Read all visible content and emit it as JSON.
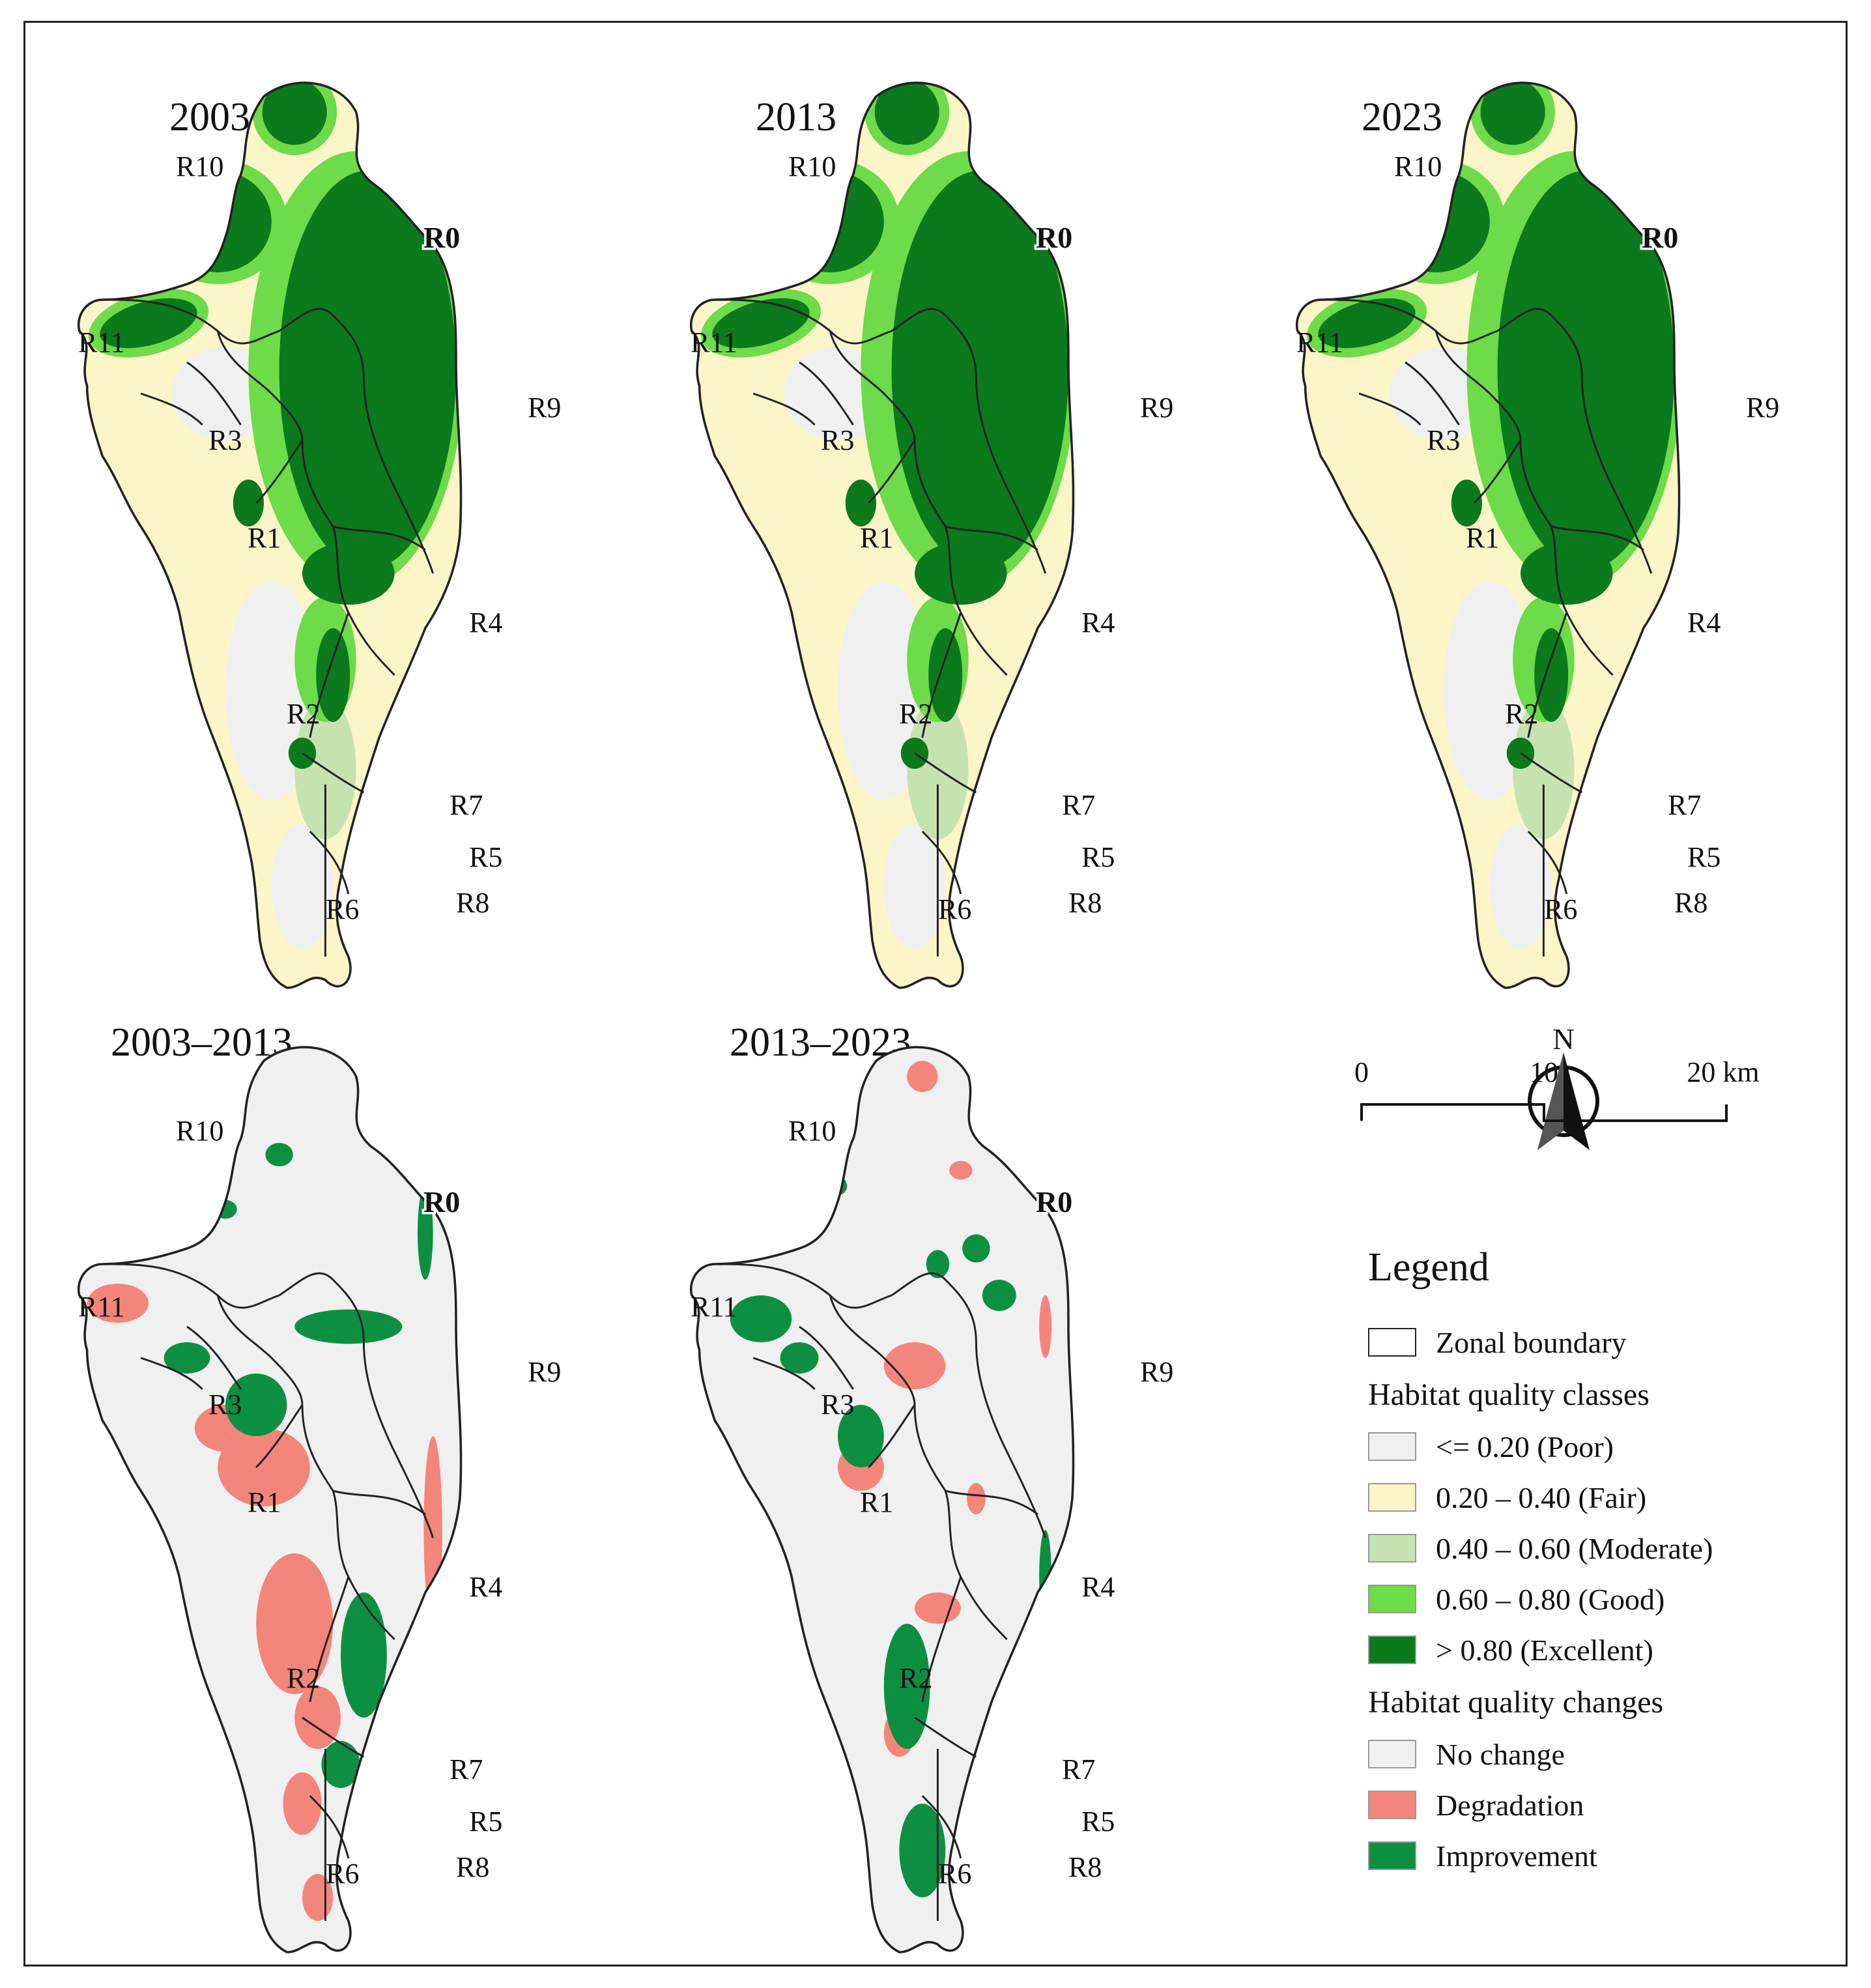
{
  "panels": [
    {
      "id": "p2003",
      "title": "2003",
      "kind": "quality"
    },
    {
      "id": "p2013",
      "title": "2013",
      "kind": "quality"
    },
    {
      "id": "p2023",
      "title": "2023",
      "kind": "quality"
    },
    {
      "id": "p0313",
      "title": "2003–2013",
      "kind": "change"
    },
    {
      "id": "p1323",
      "title": "2013–2023",
      "kind": "change"
    }
  ],
  "regions": [
    "R0",
    "R1",
    "R2",
    "R3",
    "R4",
    "R5",
    "R6",
    "R7",
    "R8",
    "R9",
    "R10",
    "R11"
  ],
  "north_arrow": {
    "label": "N"
  },
  "scale_bar": {
    "ticks": [
      "0",
      "10",
      "20 km"
    ]
  },
  "legend": {
    "title": "Legend",
    "boundary_label": "Zonal boundary",
    "quality_heading": "Habitat quality classes",
    "quality_classes": [
      {
        "label": "<= 0.20 (Poor)",
        "color": "#f0f0f0"
      },
      {
        "label": "0.20 – 0.40 (Fair)",
        "color": "#fbf5c8"
      },
      {
        "label": "0.40 – 0.60 (Moderate)",
        "color": "#c7e2b1"
      },
      {
        "label": "0.60 – 0.80 (Good)",
        "color": "#6ddb4a"
      },
      {
        "label": "> 0.80 (Excellent)",
        "color": "#0b7a1c"
      }
    ],
    "change_heading": "Habitat quality changes",
    "change_classes": [
      {
        "label": "No change",
        "color": "#f0f0f0"
      },
      {
        "label": "Degradation",
        "color": "#f4857a"
      },
      {
        "label": "Improvement",
        "color": "#0d8f42"
      }
    ]
  },
  "colors": {
    "poor": "#f0f0f0",
    "fair": "#fbf5c8",
    "moderate": "#c7e2b1",
    "good": "#6ddb4a",
    "excellent": "#0b7a1c",
    "degradation": "#f4857a",
    "improvement": "#0d8f42",
    "boundary": "#222222"
  }
}
